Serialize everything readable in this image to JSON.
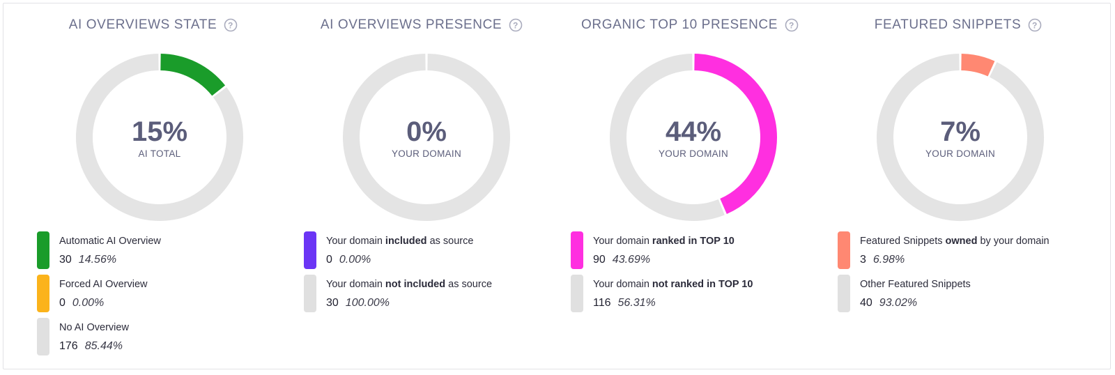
{
  "colors": {
    "track": "#e4e4e4",
    "title": "#6b6f8c",
    "center_text": "#5b5d7a",
    "green": "#1a9c2a",
    "orange": "#fbb31b",
    "purple": "#6b35f5",
    "magenta": "#ff2fe0",
    "salmon": "#ff8872",
    "gray": "#e0e0e0"
  },
  "panels": [
    {
      "title": "AI OVERVIEWS STATE",
      "help_icon": "question-circle-icon",
      "center_value": "15%",
      "center_label": "AI TOTAL",
      "legend": [
        {
          "label_parts": [
            {
              "text": "Automatic AI Overview",
              "bold": false
            }
          ],
          "count": "30",
          "percent": "14.56%",
          "color": "#1a9c2a"
        },
        {
          "label_parts": [
            {
              "text": "Forced AI Overview",
              "bold": false
            }
          ],
          "count": "0",
          "percent": "0.00%",
          "color": "#fbb31b"
        },
        {
          "label_parts": [
            {
              "text": "No AI Overview",
              "bold": false
            }
          ],
          "count": "176",
          "percent": "85.44%",
          "color": "#e0e0e0"
        }
      ]
    },
    {
      "title": "AI OVERVIEWS PRESENCE",
      "help_icon": "question-circle-icon",
      "center_value": "0%",
      "center_label": "YOUR DOMAIN",
      "legend": [
        {
          "label_parts": [
            {
              "text": "Your domain ",
              "bold": false
            },
            {
              "text": "included",
              "bold": true
            },
            {
              "text": " as source",
              "bold": false
            }
          ],
          "count": "0",
          "percent": "0.00%",
          "color": "#6b35f5"
        },
        {
          "label_parts": [
            {
              "text": "Your domain ",
              "bold": false
            },
            {
              "text": "not included",
              "bold": true
            },
            {
              "text": " as source",
              "bold": false
            }
          ],
          "count": "30",
          "percent": "100.00%",
          "color": "#e0e0e0"
        }
      ]
    },
    {
      "title": "ORGANIC TOP 10 PRESENCE",
      "help_icon": "question-circle-icon",
      "center_value": "44%",
      "center_label": "YOUR DOMAIN",
      "legend": [
        {
          "label_parts": [
            {
              "text": "Your domain ",
              "bold": false
            },
            {
              "text": "ranked in TOP 10",
              "bold": true
            }
          ],
          "count": "90",
          "percent": "43.69%",
          "color": "#ff2fe0"
        },
        {
          "label_parts": [
            {
              "text": "Your domain ",
              "bold": false
            },
            {
              "text": "not ranked in TOP 10",
              "bold": true
            }
          ],
          "count": "116",
          "percent": "56.31%",
          "color": "#e0e0e0"
        }
      ]
    },
    {
      "title": "FEATURED SNIPPETS",
      "help_icon": "question-circle-icon",
      "center_value": "7%",
      "center_label": "YOUR DOMAIN",
      "legend": [
        {
          "label_parts": [
            {
              "text": "Featured Snippets ",
              "bold": false
            },
            {
              "text": "owned",
              "bold": true
            },
            {
              "text": " by your domain",
              "bold": false
            }
          ],
          "count": "3",
          "percent": "6.98%",
          "color": "#ff8872"
        },
        {
          "label_parts": [
            {
              "text": "Other Featured Snippets",
              "bold": false
            }
          ],
          "count": "40",
          "percent": "93.02%",
          "color": "#e0e0e0"
        }
      ]
    }
  ],
  "chart_data": [
    {
      "type": "pie",
      "title": "AI OVERVIEWS STATE",
      "categories": [
        "Automatic AI Overview",
        "Forced AI Overview",
        "No AI Overview"
      ],
      "values": [
        30,
        0,
        176
      ],
      "colors": [
        "#1a9c2a",
        "#fbb31b",
        "#e4e4e4"
      ]
    },
    {
      "type": "pie",
      "title": "AI OVERVIEWS PRESENCE",
      "categories": [
        "Your domain included as source",
        "Your domain not included as source"
      ],
      "values": [
        0,
        30
      ],
      "colors": [
        "#6b35f5",
        "#e4e4e4"
      ]
    },
    {
      "type": "pie",
      "title": "ORGANIC TOP 10 PRESENCE",
      "categories": [
        "Your domain ranked in TOP 10",
        "Your domain not ranked in TOP 10"
      ],
      "values": [
        90,
        116
      ],
      "colors": [
        "#ff2fe0",
        "#e4e4e4"
      ]
    },
    {
      "type": "pie",
      "title": "FEATURED SNIPPETS",
      "categories": [
        "Featured Snippets owned by your domain",
        "Other Featured Snippets"
      ],
      "values": [
        3,
        40
      ],
      "colors": [
        "#ff8872",
        "#e4e4e4"
      ]
    }
  ]
}
